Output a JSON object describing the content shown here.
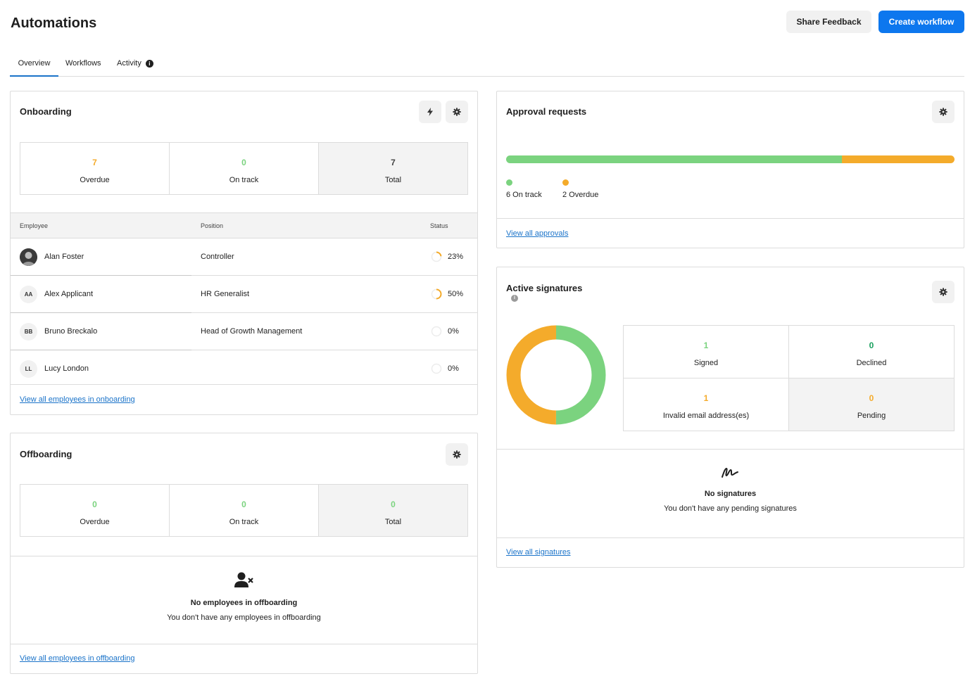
{
  "header": {
    "title": "Automations",
    "share_feedback_label": "Share Feedback",
    "create_workflow_label": "Create workflow"
  },
  "tabs": [
    {
      "label": "Overview",
      "active": true
    },
    {
      "label": "Workflows",
      "active": false
    },
    {
      "label": "Activity",
      "active": false,
      "icon": "info-icon"
    }
  ],
  "colors": {
    "accent": "#0d77ee",
    "on_track": "#7bd37f",
    "overdue": "#f4ab2b",
    "declined": "#1aa05e"
  },
  "onboarding": {
    "title": "Onboarding",
    "stats": [
      {
        "value": "7",
        "label": "Overdue"
      },
      {
        "value": "0",
        "label": "On track"
      },
      {
        "value": "7",
        "label": "Total"
      }
    ],
    "columns": [
      "Employee",
      "Position",
      "Status"
    ],
    "rows": [
      {
        "initials": "",
        "avatar": "photo",
        "name": "Alan Foster",
        "position": "Controller",
        "status": "23%",
        "progress": 0.23
      },
      {
        "initials": "AA",
        "name": "Alex Applicant",
        "position": "HR Generalist",
        "status": "50%",
        "progress": 0.5
      },
      {
        "initials": "BB",
        "name": "Bruno Breckalo",
        "position": "Head of Growth Management",
        "status": "0%",
        "progress": 0
      },
      {
        "initials": "LL",
        "name": "Lucy London",
        "position": "",
        "status": "0%",
        "progress": 0
      }
    ],
    "link": "View all employees in onboarding"
  },
  "offboarding": {
    "title": "Offboarding",
    "stats": [
      {
        "value": "0",
        "label": "Overdue"
      },
      {
        "value": "0",
        "label": "On track"
      },
      {
        "value": "0",
        "label": "Total"
      }
    ],
    "empty_title": "No employees in offboarding",
    "empty_text": "You don't have any employees in offboarding",
    "link": "View all employees in offboarding"
  },
  "approvals": {
    "title": "Approval requests",
    "on_track_count": 6,
    "overdue_count": 2,
    "legend": [
      "6 On track",
      "2 Overdue"
    ],
    "link": "View all approvals"
  },
  "signatures": {
    "title": "Active signatures",
    "stats": [
      {
        "value": "1",
        "label": "Signed"
      },
      {
        "value": "0",
        "label": "Declined"
      },
      {
        "value": "1",
        "label": "Invalid email address(es)"
      },
      {
        "value": "0",
        "label": "Pending"
      }
    ],
    "donut": {
      "signed": 1,
      "invalid": 1
    },
    "empty_title": "No signatures",
    "empty_text": "You don't have any pending signatures",
    "link": "View all signatures"
  }
}
